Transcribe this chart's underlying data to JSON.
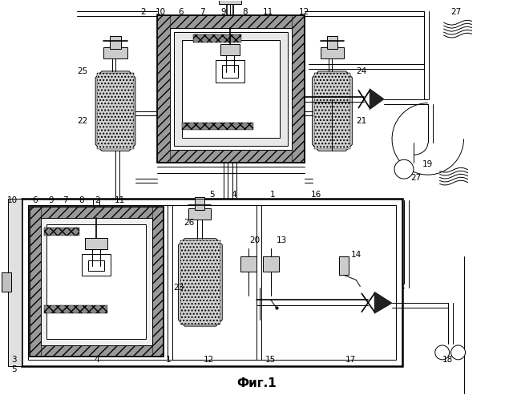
{
  "title": "Фиг.1",
  "bg_color": "#ffffff",
  "lc": "#000000",
  "fig_width": 6.4,
  "fig_height": 4.93,
  "dpi": 100
}
